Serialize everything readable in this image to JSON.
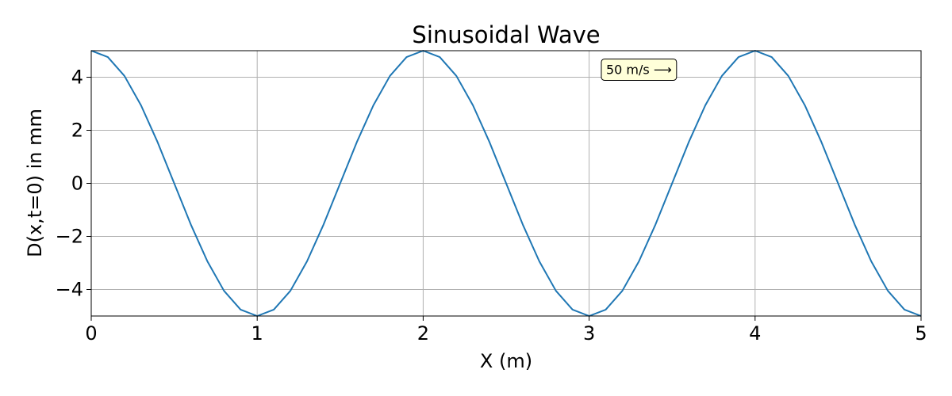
{
  "chart_data": {
    "type": "line",
    "title": "Sinusoidal Wave",
    "xlabel": "X (m)",
    "ylabel": "D(x,t=0) in mm",
    "xlim": [
      0,
      5
    ],
    "ylim": [
      -5,
      5
    ],
    "grid": true,
    "x_ticks": [
      0,
      1,
      2,
      3,
      4,
      5
    ],
    "x_tick_labels": [
      "0",
      "1",
      "2",
      "3",
      "4",
      "5"
    ],
    "y_ticks": [
      -4,
      -2,
      0,
      2,
      4
    ],
    "y_tick_labels": [
      "−4",
      "−2",
      "0",
      "2",
      "4"
    ],
    "series": [
      {
        "color": "#1f77b4",
        "x": [
          0,
          0.1,
          0.2,
          0.3,
          0.4,
          0.5,
          0.6,
          0.7,
          0.8,
          0.9,
          1.0,
          1.1,
          1.2,
          1.3,
          1.4,
          1.5,
          1.6,
          1.7,
          1.8,
          1.9,
          2.0,
          2.1,
          2.2,
          2.3,
          2.4,
          2.5,
          2.6,
          2.7,
          2.8,
          2.9,
          3.0,
          3.1,
          3.2,
          3.3,
          3.4,
          3.5,
          3.6,
          3.7,
          3.8,
          3.9,
          4.0,
          4.1,
          4.2,
          4.3,
          4.4,
          4.5,
          4.6,
          4.7,
          4.8,
          4.9,
          5.0
        ],
        "y": [
          5.0,
          4.76,
          4.05,
          2.94,
          1.55,
          0.0,
          -1.55,
          -2.94,
          -4.05,
          -4.76,
          -5.0,
          -4.76,
          -4.05,
          -2.94,
          -1.55,
          0.0,
          1.55,
          2.94,
          4.05,
          4.76,
          5.0,
          4.76,
          4.05,
          2.94,
          1.55,
          0.0,
          -1.55,
          -2.94,
          -4.05,
          -4.76,
          -5.0,
          -4.76,
          -4.05,
          -2.94,
          -1.55,
          0.0,
          1.55,
          2.94,
          4.05,
          4.76,
          5.0,
          4.76,
          4.05,
          2.94,
          1.55,
          0.0,
          -1.55,
          -2.94,
          -4.05,
          -4.76,
          -5.0
        ]
      }
    ],
    "annotations": [
      {
        "text": "50 m/s ⟶",
        "x": 3.3,
        "y": 4.3,
        "box_fill": "#ffffd9"
      }
    ]
  }
}
